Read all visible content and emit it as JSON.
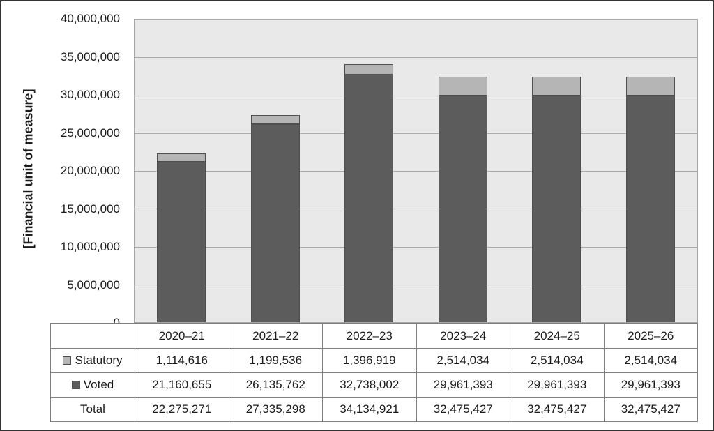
{
  "page": {
    "background": "#ffffff",
    "frame_border_color": "#333333"
  },
  "chart_data": {
    "type": "bar",
    "stacked": true,
    "title": "",
    "ylabel": "[Financial unit of measure]",
    "xlabel": "",
    "categories": [
      "2020–21",
      "2021–22",
      "2022–23",
      "2023–24",
      "2024–25",
      "2025–26"
    ],
    "series": [
      {
        "name": "Statutory",
        "color": "#b5b5b5",
        "values": [
          1114616,
          1199536,
          1396919,
          2514034,
          2514034,
          2514034
        ]
      },
      {
        "name": "Voted",
        "color": "#5c5c5c",
        "values": [
          21160655,
          26135762,
          32738002,
          29961393,
          29961393,
          29961393
        ]
      }
    ],
    "stack_order_bottom_to_top": [
      "Voted",
      "Statutory"
    ],
    "totals": {
      "label": "Total",
      "values": [
        22275271,
        27335298,
        34134921,
        32475427,
        32475427,
        32475427
      ]
    },
    "ylim": [
      0,
      40000000
    ],
    "ytick_step": 5000000,
    "yticks": [
      "40,000,000",
      "35,000,000",
      "30,000,000",
      "25,000,000",
      "20,000,000",
      "15,000,000",
      "10,000,000",
      "5,000,000",
      "0"
    ],
    "grid": true,
    "plot_background": "#e9e9e9",
    "gridline_color": "#ababab",
    "legend_position": "table-row-labels"
  }
}
